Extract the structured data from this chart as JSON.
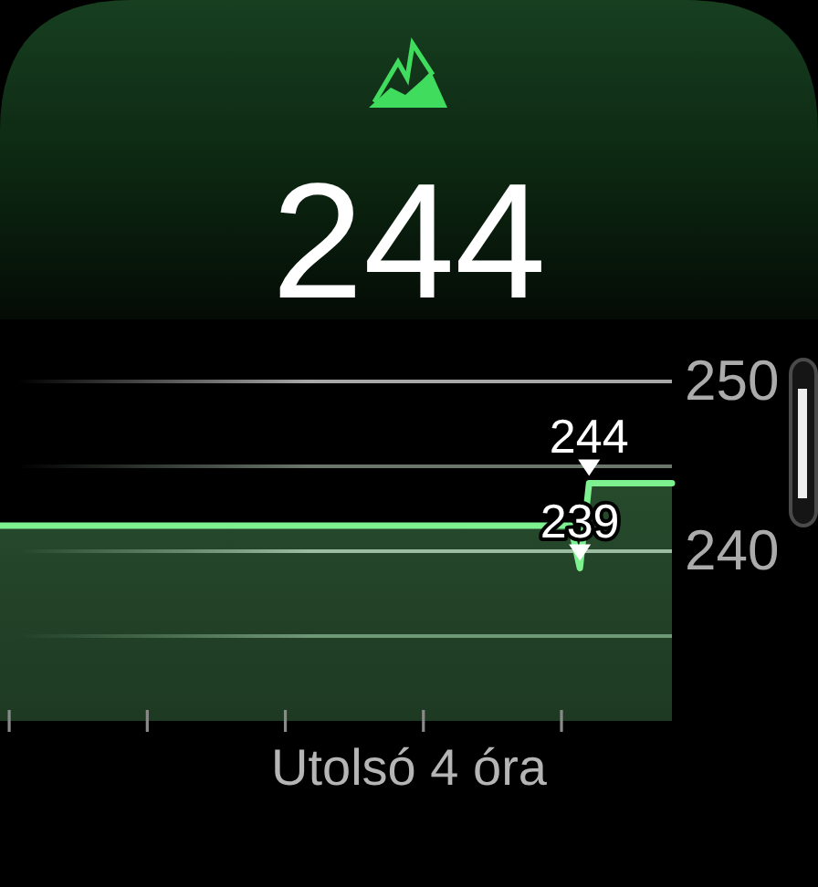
{
  "chart_data": {
    "type": "area",
    "title": "244",
    "xlabel": "Utolsó 4 óra",
    "categories": [
      null,
      null,
      null,
      null,
      null,
      null,
      null,
      null,
      null,
      null,
      null,
      null,
      null,
      null,
      null,
      null,
      null,
      null,
      null,
      null,
      null,
      null,
      null,
      null,
      null,
      null,
      null,
      null,
      null,
      null,
      null,
      null,
      null,
      null,
      null,
      null,
      null,
      null,
      null,
      null,
      null,
      null,
      null,
      null,
      null,
      null,
      null,
      null,
      null,
      null,
      null,
      null,
      null,
      null,
      null,
      null,
      null,
      null,
      null,
      null,
      null,
      null,
      null,
      null,
      null,
      null,
      null,
      null,
      null,
      null,
      null,
      null,
      null,
      null
    ],
    "values": [
      241.5,
      241.5,
      241.5,
      241.5,
      241.5,
      241.5,
      241.5,
      241.5,
      241.5,
      241.5,
      241.5,
      241.5,
      241.5,
      241.5,
      241.5,
      241.5,
      241.5,
      241.5,
      241.5,
      241.5,
      241.5,
      241.5,
      241.5,
      241.5,
      241.5,
      241.5,
      241.5,
      241.5,
      241.5,
      241.5,
      241.5,
      241.5,
      241.5,
      241.5,
      241.5,
      241.5,
      241.5,
      241.5,
      241.5,
      241.5,
      241.5,
      241.5,
      241.5,
      241.5,
      241.5,
      241.5,
      241.5,
      241.5,
      241.5,
      241.5,
      241.5,
      241.5,
      241.5,
      241.5,
      241.5,
      241.5,
      241.5,
      241.5,
      241.5,
      241.5,
      241.5,
      241.5,
      241.5,
      239,
      244,
      244,
      244,
      244,
      244,
      244,
      244,
      244,
      244,
      244
    ],
    "color": "#7df08f",
    "ylim": [
      230,
      250
    ],
    "yticks": [
      {
        "value": 235,
        "label": null
      },
      240,
      {
        "value": 245,
        "label": null
      },
      250
    ],
    "grid": "y",
    "tick_labels": "y",
    "annotations": [
      {
        "text": "244",
        "y": 244
      },
      {
        "text": "239",
        "y": 239
      }
    ]
  }
}
